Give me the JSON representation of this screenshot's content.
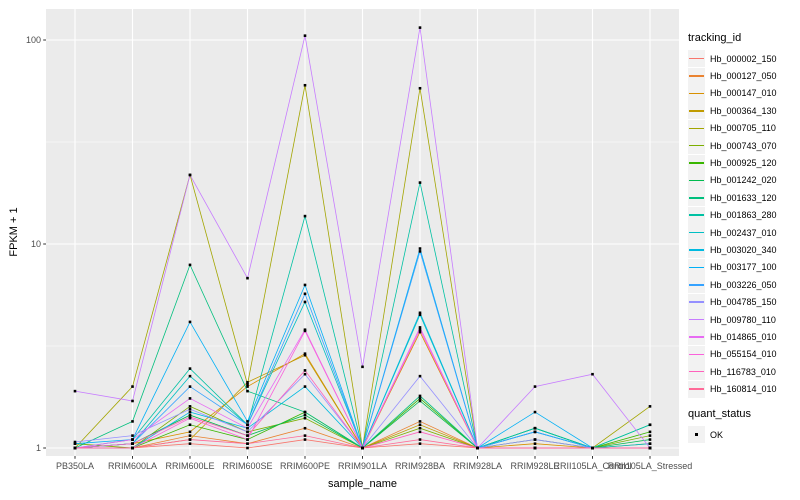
{
  "chart_data": {
    "type": "line",
    "title": "",
    "xlabel": "sample_name",
    "ylabel": "FPKM + 1",
    "yscale": "log10",
    "yticks": [
      1,
      10,
      100
    ],
    "ylim": [
      1,
      120
    ],
    "grid": true,
    "panel_bg": "#EBEBEB",
    "grid_color": "#FFFFFF",
    "point_color": "#000000",
    "tick_color": "#333333",
    "tick_label_color": "#4D4D4D",
    "legend_position": "right",
    "legend_title": "tracking_id",
    "legend2_title": "quant_status",
    "legend2_items": [
      {
        "label": "OK",
        "marker": "black-square"
      }
    ],
    "categories": [
      "PB350LA",
      "RRIM600LA",
      "RRIM600LE",
      "RRIM600SE",
      "RRIM600PE",
      "RRIM901LA",
      "RRIM928BA",
      "RRIM928LA",
      "RRIM928LE",
      "RRII105LA_Control",
      "RRII105LA_Stressed"
    ],
    "series": [
      {
        "name": "Hb_000002_150",
        "color": "#F8766D",
        "values": [
          1,
          1,
          1.05,
          1,
          1.1,
          1,
          1.05,
          1,
          1,
          1,
          1
        ]
      },
      {
        "name": "Hb_000127_050",
        "color": "#EA8331",
        "values": [
          1,
          1,
          1.15,
          1.05,
          1.25,
          1,
          1.35,
          1,
          1,
          1,
          1.05
        ]
      },
      {
        "name": "Hb_000147_010",
        "color": "#D89000",
        "values": [
          1,
          1.05,
          1.2,
          2.0,
          2.9,
          1,
          3.7,
          1,
          1.05,
          1,
          1
        ]
      },
      {
        "name": "Hb_000364_130",
        "color": "#C09B00",
        "values": [
          1,
          1,
          1.1,
          2.1,
          2.85,
          1,
          1.3,
          1,
          1,
          1,
          1
        ]
      },
      {
        "name": "Hb_000705_110",
        "color": "#A3A500",
        "values": [
          1,
          2.0,
          21.8,
          2.05,
          60,
          1,
          58,
          1,
          1,
          1,
          1.6
        ]
      },
      {
        "name": "Hb_000743_070",
        "color": "#7CAE00",
        "values": [
          1.05,
          1,
          1.6,
          1.2,
          1.4,
          1,
          1.25,
          1,
          1,
          1,
          1.15
        ]
      },
      {
        "name": "Hb_000925_120",
        "color": "#39B600",
        "values": [
          1,
          1,
          1.3,
          1.1,
          1.5,
          1,
          1.75,
          1,
          1.1,
          1,
          1.2
        ]
      },
      {
        "name": "Hb_001242_020",
        "color": "#00BB4E",
        "values": [
          1,
          1.05,
          1.45,
          1.15,
          1.45,
          1,
          1.7,
          1,
          1.25,
          1,
          1.1
        ]
      },
      {
        "name": "Hb_001633_120",
        "color": "#00BF7D",
        "values": [
          1,
          1.35,
          7.9,
          1.9,
          1.5,
          1,
          1.8,
          1,
          1.25,
          1,
          1.3
        ]
      },
      {
        "name": "Hb_001863_280",
        "color": "#00C1A3",
        "values": [
          1,
          1.1,
          2.45,
          1.3,
          13.7,
          1,
          20,
          1,
          1.25,
          1,
          1.3
        ]
      },
      {
        "name": "Hb_002437_010",
        "color": "#00BFC4",
        "values": [
          1,
          1.05,
          2.25,
          1.3,
          5.2,
          1,
          4.5,
          1,
          1.2,
          1,
          1.05
        ]
      },
      {
        "name": "Hb_003020_340",
        "color": "#00BAE0",
        "values": [
          1,
          1,
          1.5,
          1.25,
          2.0,
          1,
          4.6,
          1,
          1.2,
          1,
          1
        ]
      },
      {
        "name": "Hb_003177_100",
        "color": "#00B0F6",
        "values": [
          1.05,
          1.1,
          4.15,
          1.35,
          6.3,
          1,
          9.5,
          1,
          1.5,
          1,
          1
        ]
      },
      {
        "name": "Hb_003226_050",
        "color": "#35A2FF",
        "values": [
          1,
          1.05,
          2.0,
          1.3,
          5.7,
          1,
          9.2,
          1,
          1.2,
          1,
          1
        ]
      },
      {
        "name": "Hb_004785_150",
        "color": "#9590FF",
        "values": [
          1.07,
          1.15,
          1.55,
          1.2,
          2.3,
          1,
          2.25,
          1,
          1.1,
          1,
          1
        ]
      },
      {
        "name": "Hb_009780_110",
        "color": "#C77CFF",
        "values": [
          1.9,
          1.7,
          21.8,
          6.8,
          105,
          2.5,
          115,
          1,
          2.0,
          2.3,
          1
        ]
      },
      {
        "name": "Hb_014865_010",
        "color": "#E76BF3",
        "values": [
          1,
          1.1,
          1.75,
          1.25,
          3.8,
          1,
          3.9,
          1,
          1,
          1,
          1
        ]
      },
      {
        "name": "Hb_055154_010",
        "color": "#FA62DB",
        "values": [
          1,
          1,
          1.4,
          1.1,
          3.75,
          1,
          3.8,
          1,
          1,
          1,
          1
        ]
      },
      {
        "name": "Hb_116783_010",
        "color": "#FF62BC",
        "values": [
          1,
          1.05,
          1.42,
          1.15,
          2.4,
          1,
          1.2,
          1,
          1,
          1,
          1
        ]
      },
      {
        "name": "Hb_160814_010",
        "color": "#FF6A98",
        "values": [
          1,
          1,
          1.1,
          1.05,
          1.15,
          1,
          1.1,
          1,
          1,
          1,
          1
        ]
      }
    ]
  }
}
